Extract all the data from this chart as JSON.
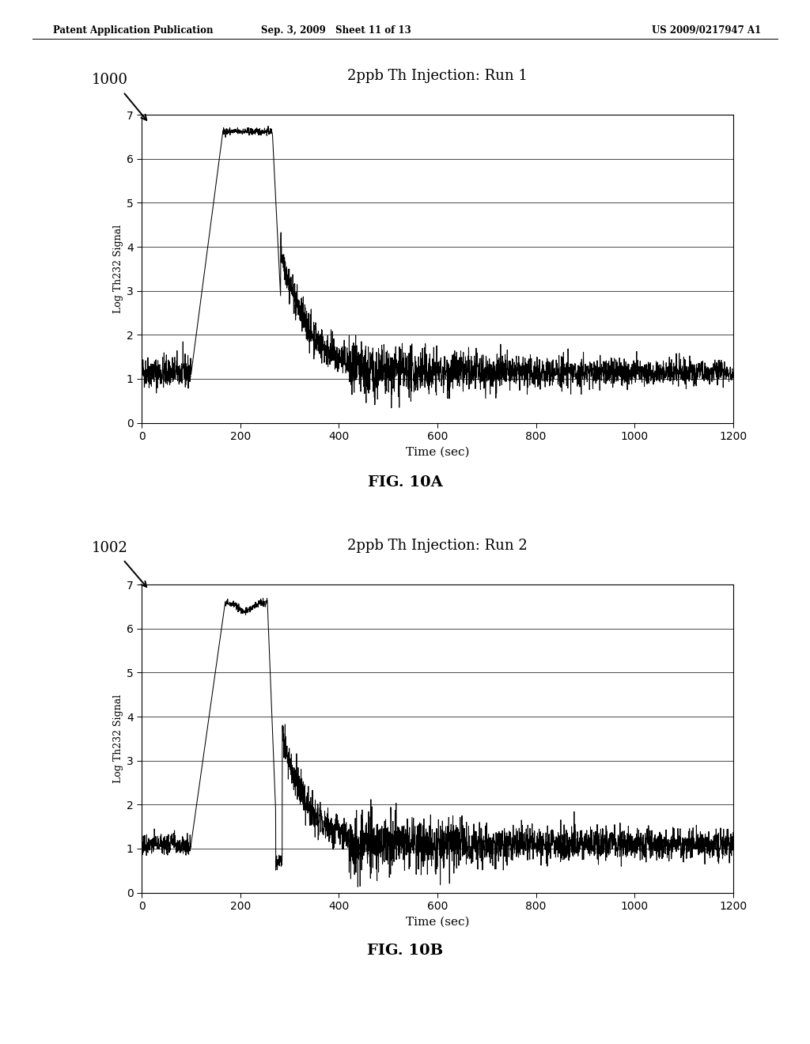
{
  "header_left": "Patent Application Publication",
  "header_mid": "Sep. 3, 2009   Sheet 11 of 13",
  "header_right": "US 2009/0217947 A1",
  "fig1_title": "2ppb Th Injection: Run 1",
  "fig1_label": "1000",
  "fig2_title": "2ppb Th Injection: Run 2",
  "fig2_label": "1002",
  "fig1_caption": "FIG. 10A",
  "fig2_caption": "FIG. 10B",
  "xlabel": "Time (sec)",
  "ylabel": "Log Th232 Signal",
  "xlim": [
    0,
    1200
  ],
  "ylim": [
    0,
    7
  ],
  "xticks": [
    0,
    200,
    400,
    600,
    800,
    1000,
    1200
  ],
  "yticks": [
    0,
    1,
    2,
    3,
    4,
    5,
    6,
    7
  ],
  "background_color": "#ffffff",
  "line_color": "#000000"
}
